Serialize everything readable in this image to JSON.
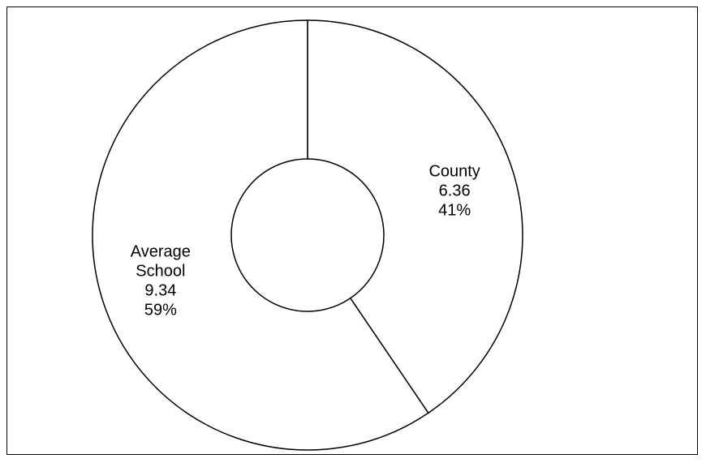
{
  "chart_data": {
    "type": "pie",
    "donut": true,
    "title": "",
    "legend": "none",
    "slices": [
      {
        "label_lines": [
          "County"
        ],
        "value": 6.36,
        "percent_label": "41%",
        "value_label": "6.36"
      },
      {
        "label_lines": [
          "Average",
          "School"
        ],
        "value": 9.34,
        "percent_label": "59%",
        "value_label": "9.34"
      }
    ],
    "colors": {
      "fill": "#ffffff",
      "stroke": "#000000"
    }
  }
}
